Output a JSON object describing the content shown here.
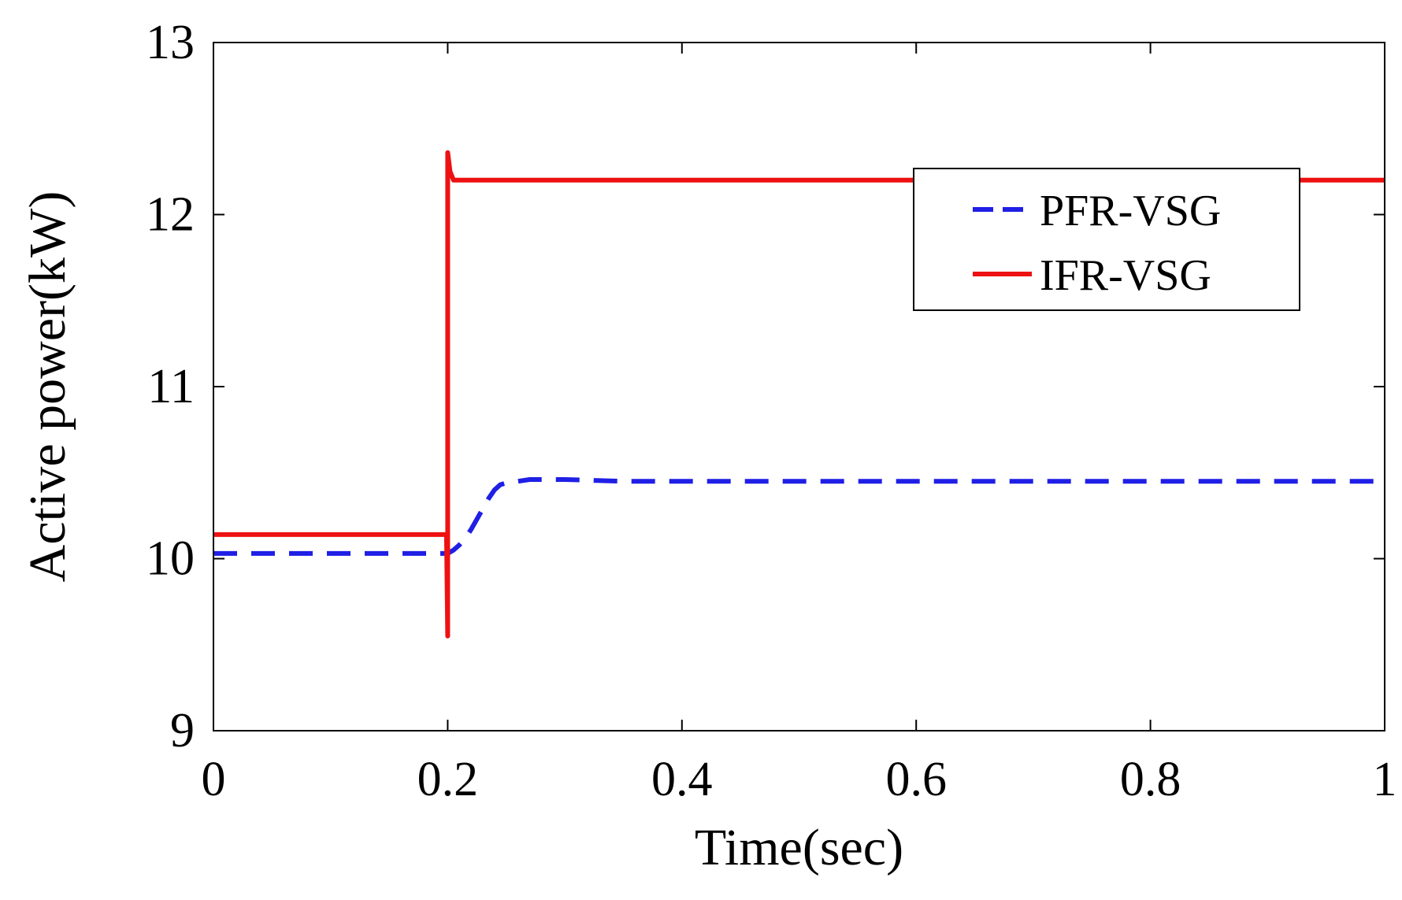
{
  "chart_data": {
    "type": "line",
    "title": "",
    "xlabel": "Time(sec)",
    "ylabel": "Active power(kW)",
    "xlim": [
      0,
      1
    ],
    "ylim": [
      9,
      13
    ],
    "xticks": [
      0,
      0.2,
      0.4,
      0.6,
      0.8,
      1
    ],
    "xtick_labels": [
      "0",
      "0.2",
      "0.4",
      "0.6",
      "0.8",
      "1"
    ],
    "yticks": [
      9,
      10,
      11,
      12,
      13
    ],
    "ytick_labels": [
      "9",
      "10",
      "11",
      "12",
      "13"
    ],
    "grid": false,
    "legend_position": "top-right",
    "series": [
      {
        "name": "PFR-VSG",
        "color": "#1f1fe6",
        "style": "dashed",
        "x": [
          0,
          0.05,
          0.1,
          0.15,
          0.195,
          0.2,
          0.205,
          0.21,
          0.215,
          0.22,
          0.225,
          0.23,
          0.235,
          0.24,
          0.245,
          0.25,
          0.26,
          0.27,
          0.3,
          0.35,
          0.4,
          0.5,
          0.6,
          0.7,
          0.8,
          0.9,
          1.0
        ],
        "y": [
          10.03,
          10.03,
          10.03,
          10.03,
          10.03,
          10.03,
          10.05,
          10.08,
          10.12,
          10.17,
          10.23,
          10.29,
          10.35,
          10.4,
          10.43,
          10.44,
          10.45,
          10.46,
          10.46,
          10.45,
          10.45,
          10.45,
          10.45,
          10.45,
          10.45,
          10.45,
          10.45
        ]
      },
      {
        "name": "IFR-VSG",
        "color": "#ee1111",
        "style": "solid",
        "x": [
          0,
          0.1,
          0.199,
          0.2,
          0.2,
          0.2,
          0.202,
          0.205,
          0.21,
          0.3,
          0.5,
          0.7,
          0.9,
          1.0
        ],
        "y": [
          10.14,
          10.14,
          10.14,
          9.55,
          12.36,
          12.36,
          12.25,
          12.2,
          12.2,
          12.2,
          12.2,
          12.2,
          12.2,
          12.2
        ]
      }
    ]
  }
}
